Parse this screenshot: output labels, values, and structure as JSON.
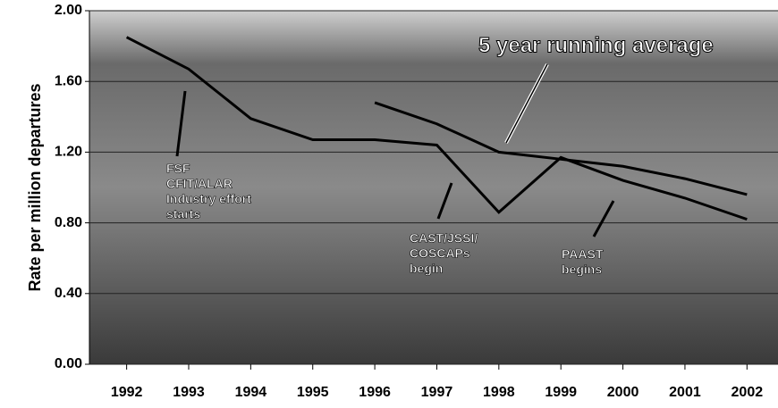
{
  "chart_data": {
    "type": "line",
    "y_label": "Rate per million departures",
    "x": [
      1992,
      1993,
      1994,
      1995,
      1996,
      1997,
      1998,
      1999,
      2000,
      2001,
      2002
    ],
    "series": [
      {
        "color": "#000000",
        "values": [
          1.85,
          1.67,
          1.39,
          1.27,
          1.27,
          1.24,
          0.86,
          1.17,
          1.04,
          0.94,
          0.82
        ]
      },
      {
        "name": "5 year running average",
        "color": "#000000",
        "values": [
          null,
          null,
          null,
          null,
          1.48,
          1.36,
          1.2,
          1.16,
          1.12,
          1.05,
          0.96
        ]
      }
    ],
    "xlim": [
      1991.4,
      2002.5
    ],
    "xticks": [
      1992,
      1993,
      1994,
      1995,
      1996,
      1997,
      1998,
      1999,
      2000,
      2001,
      2002
    ],
    "ylim": [
      0,
      2
    ],
    "yticks": [
      {
        "value": 0,
        "label": "0.00"
      },
      {
        "value": 0.4,
        "label": "0.40"
      },
      {
        "value": 0.8,
        "label": "0.80"
      },
      {
        "value": 1.2,
        "label": "1.20"
      },
      {
        "value": 1.6,
        "label": "1.60"
      },
      {
        "value": 2,
        "label": "2.00"
      }
    ],
    "grid": true,
    "annotations": [
      {
        "lines": [
          "FSF",
          "CFIT/ALAR",
          "Industry effort",
          "starts"
        ]
      },
      {
        "lines": [
          "CAST/JSSI/",
          "COSCAPs",
          "begin"
        ]
      },
      {
        "lines": [
          "PAAST",
          "begins"
        ]
      }
    ]
  }
}
